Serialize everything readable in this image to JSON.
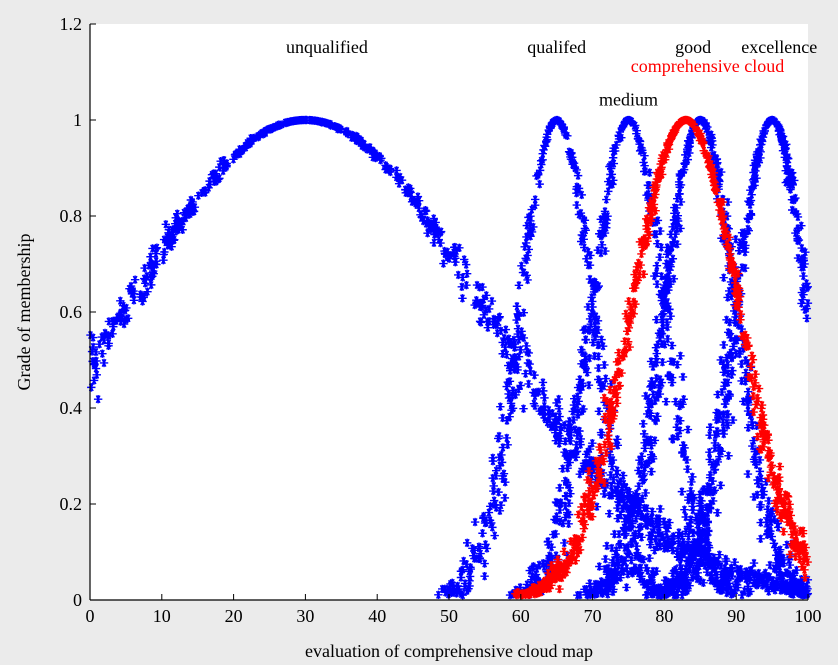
{
  "chart_data": {
    "type": "scatter",
    "marker": "asterisk",
    "xlabel": "evaluation of comprehensive cloud map",
    "ylabel": "Grade of membership",
    "xlim": [
      0,
      100
    ],
    "ylim": [
      0,
      1.2
    ],
    "xticks": [
      "0",
      "10",
      "20",
      "30",
      "40",
      "50",
      "60",
      "70",
      "80",
      "90",
      "100"
    ],
    "yticks": [
      "0",
      "0.2",
      "0.4",
      "0.6",
      "0.8",
      "1",
      "1.2"
    ],
    "grid": false,
    "series": [
      {
        "name": "unqualified",
        "color": "#0000ff",
        "ex": 30,
        "en": 25,
        "he": 0.9,
        "xrange": [
          0,
          100
        ]
      },
      {
        "name": "qualifed",
        "color": "#0000ff",
        "ex": 65,
        "en": 5,
        "he": 0.45,
        "xrange": [
          48,
          100
        ]
      },
      {
        "name": "medium",
        "color": "#0000ff",
        "ex": 75,
        "en": 5,
        "he": 0.45,
        "xrange": [
          55,
          100
        ]
      },
      {
        "name": "good",
        "color": "#0000ff",
        "ex": 85,
        "en": 5,
        "he": 0.45,
        "xrange": [
          65,
          100
        ]
      },
      {
        "name": "excellence",
        "color": "#0000ff",
        "ex": 95,
        "en": 5,
        "he": 0.45,
        "xrange": [
          72,
          100
        ]
      },
      {
        "name": "comprehensive cloud",
        "color": "#ff0000",
        "ex": 83,
        "en": 7.5,
        "he": 0.35,
        "xrange": [
          59,
          100
        ]
      }
    ],
    "annotations": [
      {
        "text": "unqualified",
        "x": 33,
        "y": 1.14,
        "color": "#000000"
      },
      {
        "text": "qualifed",
        "x": 65,
        "y": 1.14,
        "color": "#000000"
      },
      {
        "text": "good",
        "x": 84,
        "y": 1.14,
        "color": "#000000"
      },
      {
        "text": "excellence",
        "x": 96,
        "y": 1.14,
        "color": "#000000"
      },
      {
        "text": "comprehensive cloud",
        "x": 86,
        "y": 1.1,
        "color": "#ff0000"
      },
      {
        "text": "medium",
        "x": 75,
        "y": 1.03,
        "color": "#000000"
      }
    ]
  }
}
